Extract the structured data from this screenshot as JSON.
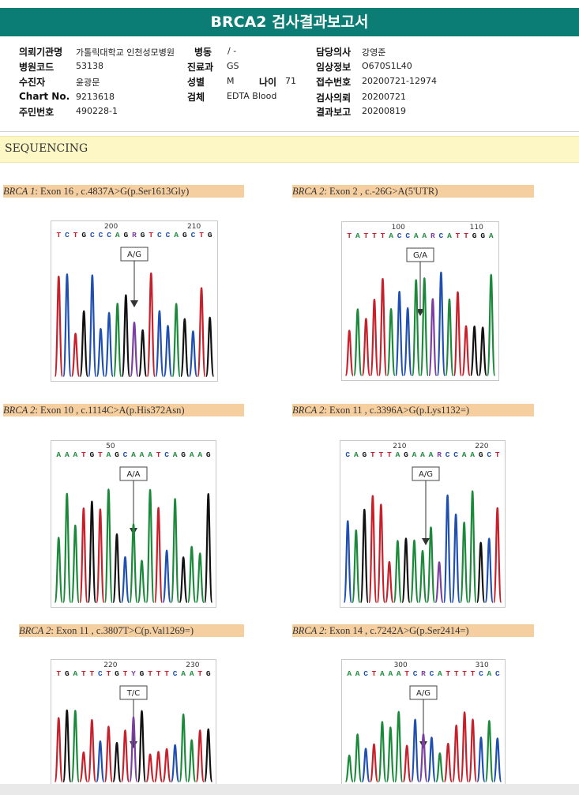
{
  "report": {
    "title": "BRCA2 검사결과보고서"
  },
  "info": {
    "institution": {
      "label": "의뢰기관명",
      "value": "가톨릭대학교 인천성모병원"
    },
    "ward": {
      "label": "병동",
      "value": "/ -"
    },
    "physician": {
      "label": "담당의사",
      "value": "강영준"
    },
    "hospital_code": {
      "label": "병원코드",
      "value": "53138"
    },
    "department": {
      "label": "진료과",
      "value": "GS"
    },
    "clinical_info": {
      "label": "임상정보",
      "value": "O670S1L40"
    },
    "patient": {
      "label": "수진자",
      "value": "윤광문"
    },
    "sex": {
      "label": "성별",
      "value": "M"
    },
    "age": {
      "label": "나이",
      "value": "71"
    },
    "receipt_no": {
      "label": "접수번호",
      "value": "20200721-12974"
    },
    "chart_no": {
      "label": "Chart No.",
      "value": "9213618"
    },
    "specimen": {
      "label": "검체",
      "value": "EDTA Blood"
    },
    "request_date": {
      "label": "검사의뢰",
      "value": "20200721"
    },
    "resident_no": {
      "label": "주민번호",
      "value": "490228-1"
    },
    "report_date": {
      "label": "결과보고",
      "value": "20200819"
    }
  },
  "section": {
    "title": "SEQUENCING"
  },
  "panels": [
    {
      "gene": "BRCA 1",
      "desc": ": Exon 16 , c.4837A>G(p.Ser1613Gly)",
      "bases": "TCTGCCCAGRGTCCAGCTG",
      "nums": [
        "200",
        "210"
      ],
      "call": "A/G"
    },
    {
      "gene": "BRCA 2",
      "desc": ": Exon 2 , c.-26G>A(5'UTR)",
      "bases": "TATTTACCAARCATTGGA",
      "nums": [
        "100",
        "110"
      ],
      "call": "G/A"
    },
    {
      "gene": "BRCA 2",
      "desc": ": Exon 10 , c.1114C>A(p.His372Asn)",
      "bases": "AAATGTAGCAAATCAGAAG",
      "nums": [
        "50"
      ],
      "call": "A/A"
    },
    {
      "gene": "BRCA 2",
      "desc": ": Exon 11 , c.3396A>G(p.Lys1132=)",
      "bases": "CAGTTTAGAAARCCAAGCT",
      "nums": [
        "210",
        "220"
      ],
      "call": "A/G"
    },
    {
      "gene": "BRCA 2",
      "desc": ": Exon 11 , c.3807T>C(p.Val1269=)",
      "bases": "TGATTCTGTYGTTTCAATG",
      "nums": [
        "220",
        "230"
      ],
      "call": "T/C"
    },
    {
      "gene": "BRCA 2",
      "desc": ": Exon 14 , c.7242A>G(p.Ser2414=)",
      "bases": "AACTAAATCRCATTTTCAC",
      "nums": [
        "300",
        "310"
      ],
      "call": "A/G"
    }
  ],
  "colors": {
    "A": "#1a8a3a",
    "C": "#1f4fb0",
    "G": "#111111",
    "T": "#c8202a",
    "header": "#0b7d74",
    "section_bg": "#fdf7c5",
    "caption_bg": "#f6cfa0"
  }
}
